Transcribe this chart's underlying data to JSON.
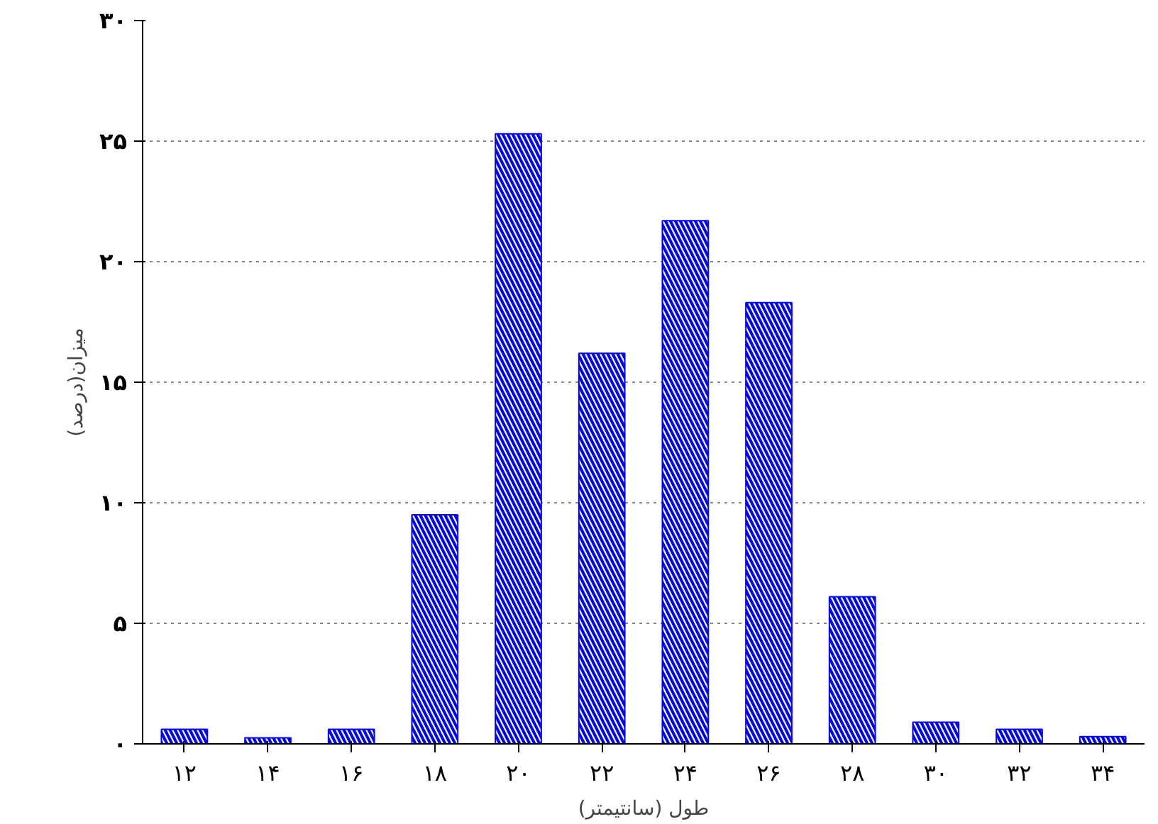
{
  "chart_data": {
    "type": "bar",
    "xlabel": "طول (سانتیمتر)",
    "ylabel": "میزان(درصد)",
    "categories": [
      "۱۲",
      "۱۴",
      "۱۶",
      "۱۸",
      "۲۰",
      "۲۲",
      "۲۴",
      "۲۶",
      "۲۸",
      "۳۰",
      "۳۲",
      "۳۴"
    ],
    "values": [
      0.6,
      0.25,
      0.6,
      9.5,
      25.3,
      16.2,
      21.7,
      18.3,
      6.1,
      0.9,
      0.6,
      0.3
    ],
    "color": "#0000ff",
    "ylim": [
      0,
      30
    ],
    "yticks": [
      {
        "value": 0,
        "label": "۰"
      },
      {
        "value": 5,
        "label": "۵"
      },
      {
        "value": 10,
        "label": "۱۰"
      },
      {
        "value": 15,
        "label": "۱۵"
      },
      {
        "value": 20,
        "label": "۲۰"
      },
      {
        "value": 25,
        "label": "۲۵"
      },
      {
        "value": 30,
        "label": "۳۰"
      }
    ],
    "grid": "y"
  }
}
